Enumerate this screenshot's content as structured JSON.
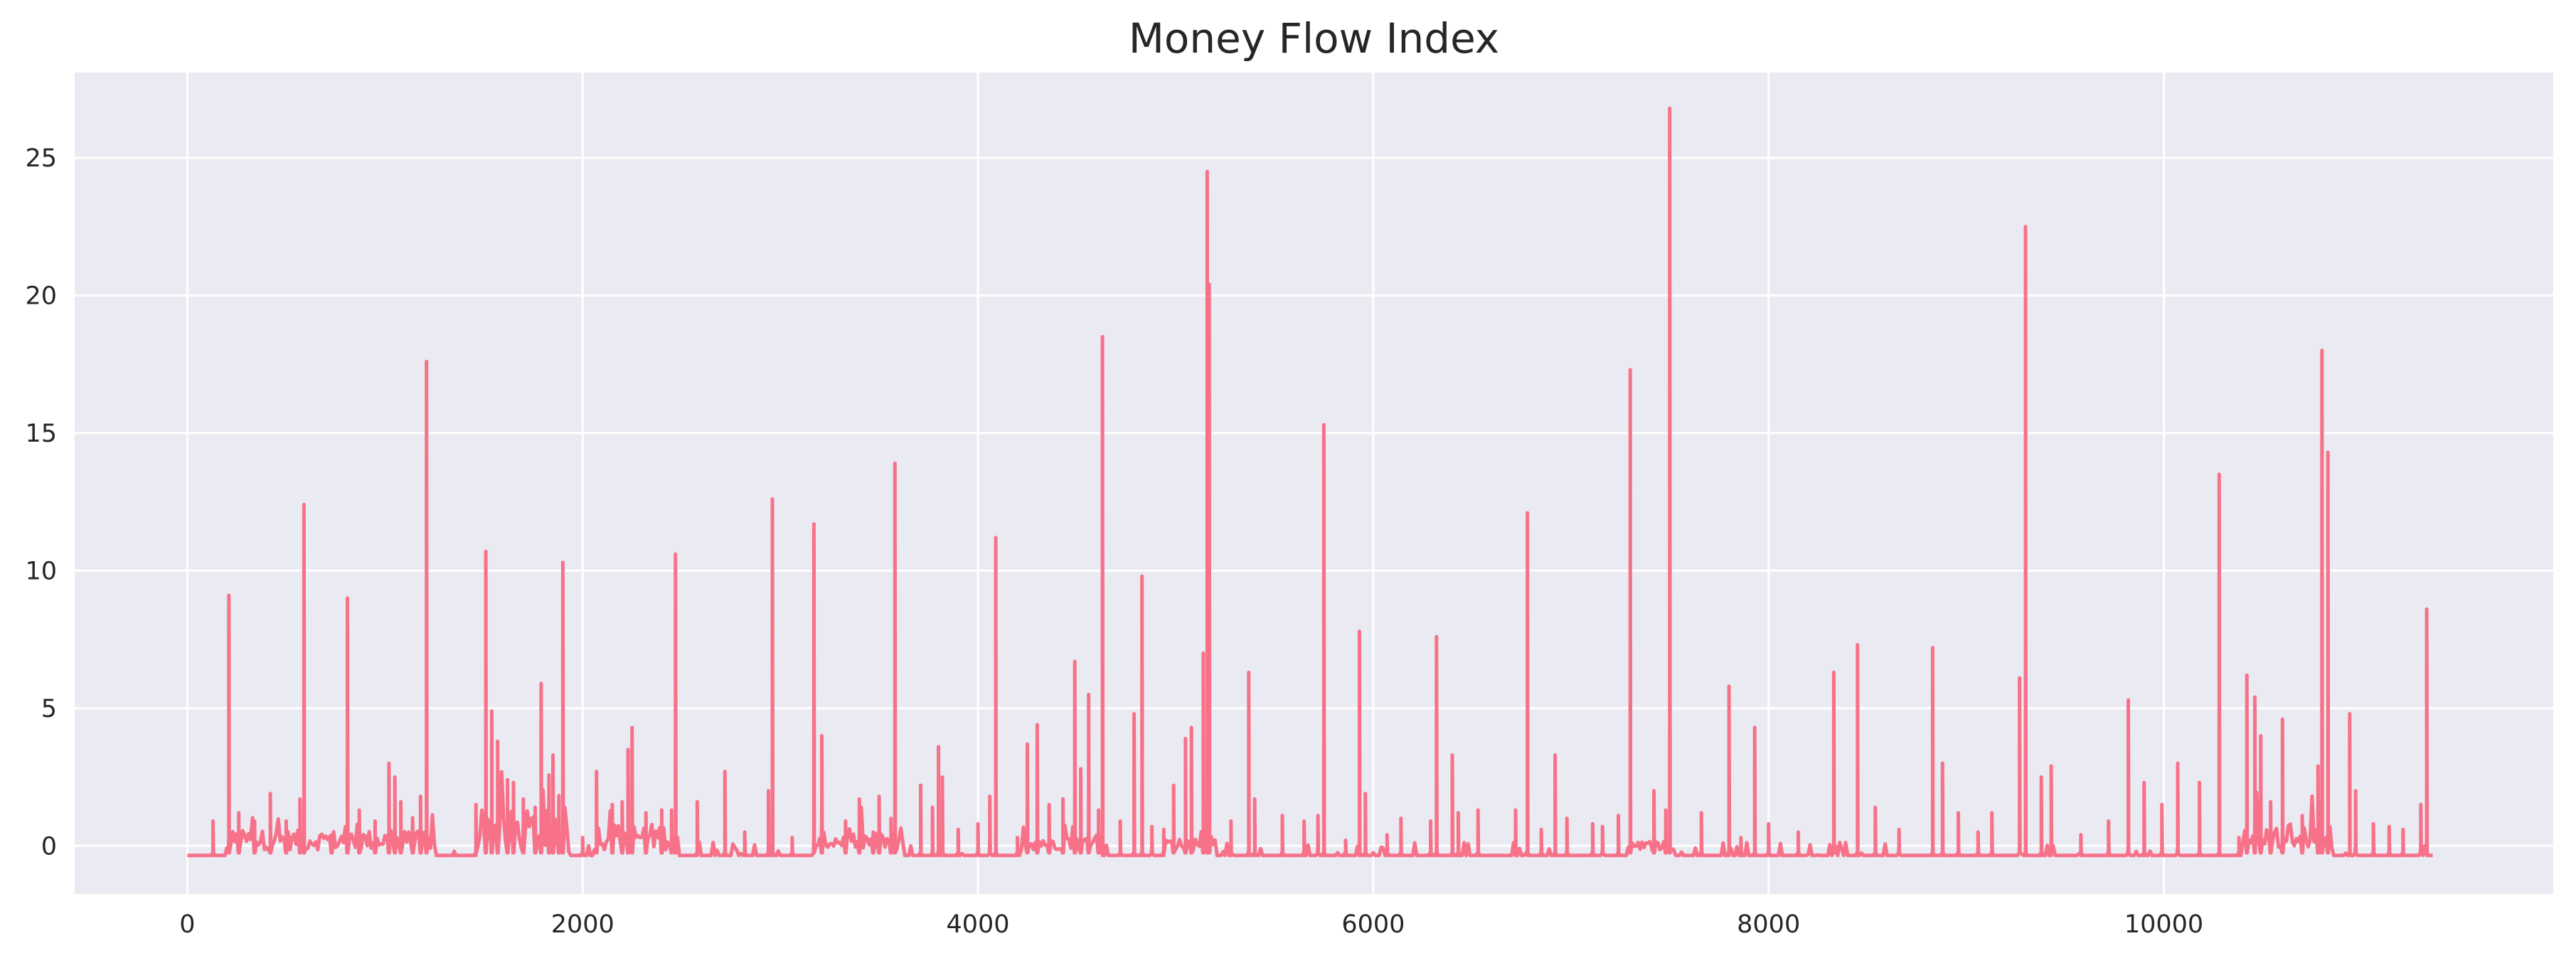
{
  "chart_data": {
    "type": "line",
    "title": "Money Flow Index",
    "xlabel": "",
    "ylabel": "",
    "xlim": [
      -570,
      11970
    ],
    "ylim": [
      -1.75,
      28.1
    ],
    "xticks": [
      0,
      2000,
      4000,
      6000,
      8000,
      10000
    ],
    "xtick_labels": [
      "0",
      "2000",
      "4000",
      "6000",
      "8000",
      "10000"
    ],
    "yticks": [
      0,
      5,
      10,
      15,
      20,
      25
    ],
    "ytick_labels": [
      "0",
      "5",
      "10",
      "15",
      "20",
      "25"
    ],
    "grid": true,
    "legend": "none",
    "colors": {
      "line": "#f77189",
      "plot_background": "#eaeaf2",
      "grid": "#ffffff",
      "text": "#262626"
    },
    "x_range": [
      0,
      11360
    ],
    "baseline": -0.35,
    "series": [
      {
        "name": "",
        "spikes": [
          {
            "x": 130,
            "y": 0.9
          },
          {
            "x": 210,
            "y": 9.1
          },
          {
            "x": 260,
            "y": 1.2
          },
          {
            "x": 340,
            "y": 0.9
          },
          {
            "x": 420,
            "y": 1.9
          },
          {
            "x": 500,
            "y": 0.9
          },
          {
            "x": 570,
            "y": 1.7
          },
          {
            "x": 590,
            "y": 12.4
          },
          {
            "x": 730,
            "y": 0.4
          },
          {
            "x": 810,
            "y": 9.0
          },
          {
            "x": 870,
            "y": 1.3
          },
          {
            "x": 950,
            "y": 0.9
          },
          {
            "x": 1020,
            "y": 3.0
          },
          {
            "x": 1050,
            "y": 2.5
          },
          {
            "x": 1080,
            "y": 1.6
          },
          {
            "x": 1140,
            "y": 0.9
          },
          {
            "x": 1180,
            "y": 1.8
          },
          {
            "x": 1210,
            "y": 17.6
          },
          {
            "x": 1350,
            "y": -0.2
          },
          {
            "x": 1460,
            "y": 1.5
          },
          {
            "x": 1510,
            "y": 10.7
          },
          {
            "x": 1540,
            "y": 4.9
          },
          {
            "x": 1570,
            "y": 3.8
          },
          {
            "x": 1620,
            "y": 2.4
          },
          {
            "x": 1650,
            "y": 2.3
          },
          {
            "x": 1700,
            "y": 1.7
          },
          {
            "x": 1760,
            "y": 1.4
          },
          {
            "x": 1790,
            "y": 5.9
          },
          {
            "x": 1830,
            "y": 1.8
          },
          {
            "x": 1850,
            "y": 3.3
          },
          {
            "x": 1880,
            "y": 1.5
          },
          {
            "x": 1900,
            "y": 10.3
          },
          {
            "x": 2000,
            "y": 0.3
          },
          {
            "x": 2070,
            "y": 2.7
          },
          {
            "x": 2150,
            "y": 1.5
          },
          {
            "x": 2200,
            "y": 1.6
          },
          {
            "x": 2230,
            "y": 3.5
          },
          {
            "x": 2250,
            "y": 4.3
          },
          {
            "x": 2320,
            "y": 1.2
          },
          {
            "x": 2400,
            "y": 1.3
          },
          {
            "x": 2450,
            "y": 1.3
          },
          {
            "x": 2470,
            "y": 10.6
          },
          {
            "x": 2580,
            "y": 1.6
          },
          {
            "x": 2720,
            "y": 2.7
          },
          {
            "x": 2820,
            "y": 0.5
          },
          {
            "x": 2940,
            "y": 2.0
          },
          {
            "x": 2960,
            "y": 12.6
          },
          {
            "x": 3060,
            "y": 0.3
          },
          {
            "x": 3170,
            "y": 11.7
          },
          {
            "x": 3210,
            "y": 4.0
          },
          {
            "x": 3330,
            "y": 0.9
          },
          {
            "x": 3400,
            "y": 1.7
          },
          {
            "x": 3470,
            "y": 0.5
          },
          {
            "x": 3500,
            "y": 1.8
          },
          {
            "x": 3560,
            "y": 1.0
          },
          {
            "x": 3580,
            "y": 13.9
          },
          {
            "x": 3710,
            "y": 2.2
          },
          {
            "x": 3770,
            "y": 1.4
          },
          {
            "x": 3800,
            "y": 3.6
          },
          {
            "x": 3820,
            "y": 2.5
          },
          {
            "x": 3900,
            "y": 0.6
          },
          {
            "x": 4000,
            "y": 0.8
          },
          {
            "x": 4060,
            "y": 1.8
          },
          {
            "x": 4090,
            "y": 11.2
          },
          {
            "x": 4200,
            "y": 0.3
          },
          {
            "x": 4250,
            "y": 3.7
          },
          {
            "x": 4300,
            "y": 4.4
          },
          {
            "x": 4360,
            "y": 1.5
          },
          {
            "x": 4430,
            "y": 1.7
          },
          {
            "x": 4490,
            "y": 6.7
          },
          {
            "x": 4520,
            "y": 2.8
          },
          {
            "x": 4560,
            "y": 5.5
          },
          {
            "x": 4610,
            "y": 1.3
          },
          {
            "x": 4630,
            "y": 18.5
          },
          {
            "x": 4720,
            "y": 0.9
          },
          {
            "x": 4790,
            "y": 4.8
          },
          {
            "x": 4830,
            "y": 9.8
          },
          {
            "x": 4880,
            "y": 0.7
          },
          {
            "x": 4940,
            "y": 0.6
          },
          {
            "x": 4990,
            "y": 2.2
          },
          {
            "x": 5050,
            "y": 3.9
          },
          {
            "x": 5080,
            "y": 4.3
          },
          {
            "x": 5140,
            "y": 7.0
          },
          {
            "x": 5160,
            "y": 24.5
          },
          {
            "x": 5170,
            "y": 20.4
          },
          {
            "x": 5280,
            "y": 0.9
          },
          {
            "x": 5370,
            "y": 6.3
          },
          {
            "x": 5400,
            "y": 1.7
          },
          {
            "x": 5540,
            "y": 1.1
          },
          {
            "x": 5650,
            "y": 0.9
          },
          {
            "x": 5720,
            "y": 1.1
          },
          {
            "x": 5750,
            "y": 15.3
          },
          {
            "x": 5860,
            "y": 0.2
          },
          {
            "x": 5930,
            "y": 7.8
          },
          {
            "x": 5960,
            "y": 1.9
          },
          {
            "x": 6070,
            "y": 0.4
          },
          {
            "x": 6140,
            "y": 1.0
          },
          {
            "x": 6290,
            "y": 0.9
          },
          {
            "x": 6320,
            "y": 7.6
          },
          {
            "x": 6400,
            "y": 3.3
          },
          {
            "x": 6430,
            "y": 1.2
          },
          {
            "x": 6530,
            "y": 1.3
          },
          {
            "x": 6720,
            "y": 1.3
          },
          {
            "x": 6780,
            "y": 12.1
          },
          {
            "x": 6850,
            "y": 0.6
          },
          {
            "x": 6920,
            "y": 3.3
          },
          {
            "x": 6980,
            "y": 1.0
          },
          {
            "x": 7110,
            "y": 0.8
          },
          {
            "x": 7160,
            "y": 0.7
          },
          {
            "x": 7240,
            "y": 1.1
          },
          {
            "x": 7300,
            "y": 17.3
          },
          {
            "x": 7420,
            "y": 2.0
          },
          {
            "x": 7480,
            "y": 1.3
          },
          {
            "x": 7500,
            "y": 26.8
          },
          {
            "x": 7660,
            "y": 1.2
          },
          {
            "x": 7800,
            "y": 5.8
          },
          {
            "x": 7860,
            "y": 0.3
          },
          {
            "x": 7930,
            "y": 4.3
          },
          {
            "x": 8000,
            "y": 0.8
          },
          {
            "x": 8150,
            "y": 0.5
          },
          {
            "x": 8330,
            "y": 6.3
          },
          {
            "x": 8450,
            "y": 7.3
          },
          {
            "x": 8540,
            "y": 1.4
          },
          {
            "x": 8660,
            "y": 0.6
          },
          {
            "x": 8830,
            "y": 7.2
          },
          {
            "x": 8880,
            "y": 3.0
          },
          {
            "x": 8960,
            "y": 1.2
          },
          {
            "x": 9060,
            "y": 0.5
          },
          {
            "x": 9130,
            "y": 1.2
          },
          {
            "x": 9270,
            "y": 6.1
          },
          {
            "x": 9300,
            "y": 22.5
          },
          {
            "x": 9380,
            "y": 2.5
          },
          {
            "x": 9430,
            "y": 2.9
          },
          {
            "x": 9580,
            "y": 0.4
          },
          {
            "x": 9720,
            "y": 0.9
          },
          {
            "x": 9820,
            "y": 5.3
          },
          {
            "x": 9900,
            "y": 2.3
          },
          {
            "x": 9990,
            "y": 1.5
          },
          {
            "x": 10070,
            "y": 3.0
          },
          {
            "x": 10180,
            "y": 2.3
          },
          {
            "x": 10280,
            "y": 13.5
          },
          {
            "x": 10380,
            "y": 0.3
          },
          {
            "x": 10420,
            "y": 6.2
          },
          {
            "x": 10460,
            "y": 5.4
          },
          {
            "x": 10490,
            "y": 4.0
          },
          {
            "x": 10540,
            "y": 1.6
          },
          {
            "x": 10600,
            "y": 4.6
          },
          {
            "x": 10700,
            "y": 1.1
          },
          {
            "x": 10780,
            "y": 2.9
          },
          {
            "x": 10800,
            "y": 18.0
          },
          {
            "x": 10830,
            "y": 14.3
          },
          {
            "x": 10940,
            "y": 4.8
          },
          {
            "x": 10970,
            "y": 2.0
          },
          {
            "x": 11060,
            "y": 0.8
          },
          {
            "x": 11140,
            "y": 0.7
          },
          {
            "x": 11210,
            "y": 0.6
          },
          {
            "x": 11300,
            "y": 1.5
          },
          {
            "x": 11330,
            "y": 8.6
          }
        ],
        "dense_regions": [
          {
            "from": 200,
            "to": 1250,
            "level": 0.45
          },
          {
            "from": 1470,
            "to": 1920,
            "level": 0.9
          },
          {
            "from": 2060,
            "to": 2480,
            "level": 0.6
          },
          {
            "from": 3170,
            "to": 3620,
            "level": 0.4
          },
          {
            "from": 4220,
            "to": 4620,
            "level": 0.35
          },
          {
            "from": 4950,
            "to": 5200,
            "level": 0.3
          },
          {
            "from": 7290,
            "to": 7520,
            "level": 0.2
          },
          {
            "from": 10400,
            "to": 10850,
            "level": 0.6
          }
        ]
      }
    ]
  }
}
